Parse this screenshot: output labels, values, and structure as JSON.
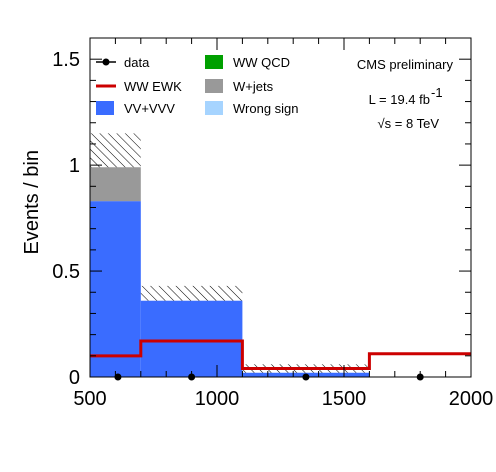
{
  "chart_data": {
    "type": "bar",
    "stacked": true,
    "xlabel": "",
    "ylabel": "Events / bin",
    "xlim": [
      500,
      2000
    ],
    "ylim": [
      0,
      1.6
    ],
    "x_ticks": [
      "500",
      "1000",
      "1500",
      "2000"
    ],
    "y_ticks": [
      "0",
      "0.5",
      "1",
      "1.5"
    ],
    "bins": [
      [
        500,
        700
      ],
      [
        700,
        1100
      ],
      [
        1100,
        1600
      ],
      [
        1600,
        2000
      ]
    ],
    "series": [
      {
        "name": "VV+VVV",
        "color": "#3a6cff",
        "values": [
          0.83,
          0.36,
          0.02,
          0.0
        ]
      },
      {
        "name": "W+jets",
        "color": "#999999",
        "values": [
          0.16,
          0.0,
          0.0,
          0.0
        ]
      },
      {
        "name": "WW QCD",
        "color": "#00a000",
        "values": [
          0.0,
          0.0,
          0.0,
          0.0
        ]
      },
      {
        "name": "Wrong sign",
        "color": "#a6d4ff",
        "values": [
          0.0,
          0.0,
          0.0,
          0.0
        ]
      }
    ],
    "uncertainty_band": {
      "upper": [
        1.15,
        0.43,
        0.06,
        0.0
      ],
      "lower": [
        0.99,
        0.36,
        0.02,
        0.0
      ]
    },
    "ewk": {
      "name": "WW EWK",
      "color": "#cc0000",
      "values": [
        0.1,
        0.17,
        0.04,
        0.11
      ]
    },
    "data": {
      "name": "data",
      "x": [
        610,
        900,
        1350,
        1800
      ],
      "y": [
        0.0,
        0.0,
        0.0,
        0.0
      ]
    },
    "legend_position": "top",
    "annotations": [
      "CMS preliminary",
      "L = 19.4 fb",
      "-1",
      "√s = 8 TeV"
    ],
    "grid": false
  }
}
